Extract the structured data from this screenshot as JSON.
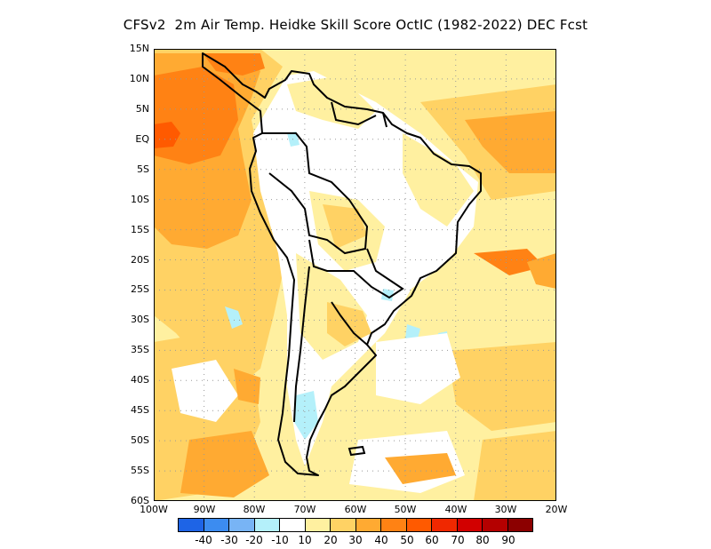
{
  "title": "CFSv2  2m Air Temp. Heidke Skill Score OctIC (1982-2022) DEC Fcst",
  "lat_labels": [
    "15N",
    "10N",
    "5N",
    "EQ",
    "5S",
    "10S",
    "15S",
    "20S",
    "25S",
    "30S",
    "35S",
    "40S",
    "45S",
    "50S",
    "55S",
    "60S"
  ],
  "lon_labels": [
    "100W",
    "90W",
    "80W",
    "70W",
    "60W",
    "50W",
    "40W",
    "30W",
    "20W"
  ],
  "colorbar": {
    "labels": [
      "-40",
      "-30",
      "-20",
      "-10",
      "10",
      "20",
      "30",
      "40",
      "50",
      "60",
      "70",
      "80",
      "90"
    ],
    "colors": [
      "#1e64e6",
      "#3c8cf0",
      "#78b4f5",
      "#b4f0fa",
      "#ffffff",
      "#fff0a0",
      "#ffd264",
      "#ffaa32",
      "#ff8214",
      "#ff5a00",
      "#f02800",
      "#d20000",
      "#b40000",
      "#8c0000"
    ]
  },
  "map": {
    "extent": {
      "lon_min": -100,
      "lon_max": -20,
      "lat_min": -60,
      "lat_max": 15
    },
    "grid": "dotted",
    "color_key": {
      "neg10": "#b4f0fa",
      "pos10": "#ffffff",
      "pos20": "#fff0a0",
      "pos30": "#ffd264",
      "pos40": "#ffaa32",
      "pos50": "#ff8214",
      "pos60": "#ff5a00"
    }
  }
}
